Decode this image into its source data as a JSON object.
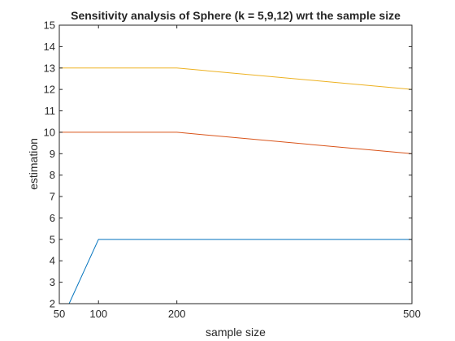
{
  "chart_data": {
    "type": "line",
    "title": "Sensitivity analysis of Sphere (k = 5,9,12) wrt the sample size",
    "xlabel": "sample size",
    "ylabel": "estimation",
    "xlim": [
      50,
      500
    ],
    "ylim": [
      2,
      15
    ],
    "xticks": [
      50,
      100,
      200,
      500
    ],
    "yticks": [
      2,
      3,
      4,
      5,
      6,
      7,
      8,
      9,
      10,
      11,
      12,
      13,
      14,
      15
    ],
    "grid": false,
    "legend": "none",
    "series": [
      {
        "color": "#0072bd",
        "x": [
          50,
          100,
          200,
          500
        ],
        "values": [
          1,
          5,
          5,
          5
        ]
      },
      {
        "color": "#d95319",
        "x": [
          50,
          100,
          200,
          500
        ],
        "values": [
          10,
          10,
          10,
          9
        ]
      },
      {
        "color": "#edb120",
        "x": [
          50,
          100,
          200,
          500
        ],
        "values": [
          13,
          13,
          13,
          12
        ]
      }
    ]
  }
}
